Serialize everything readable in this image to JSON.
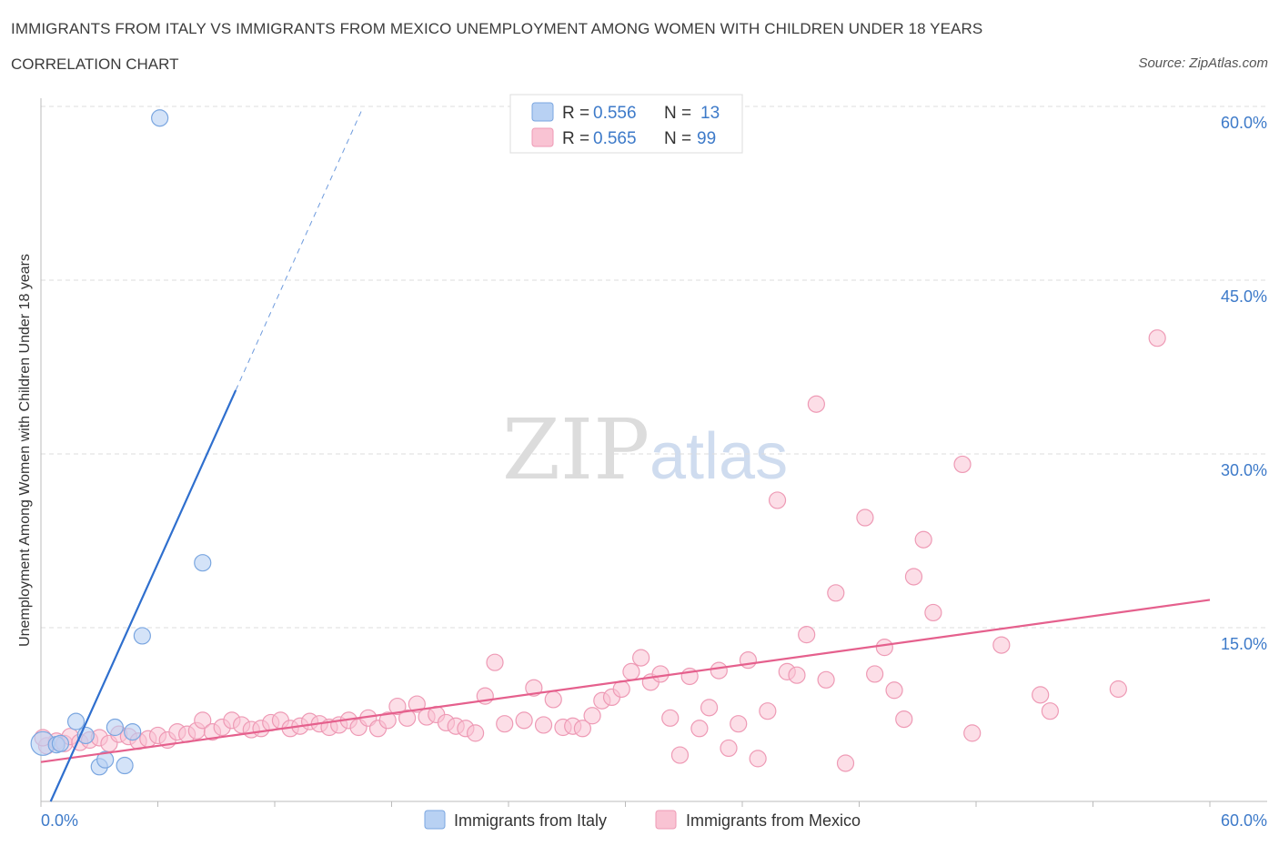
{
  "title": "IMMIGRANTS FROM ITALY VS IMMIGRANTS FROM MEXICO UNEMPLOYMENT AMONG WOMEN WITH CHILDREN UNDER 18 YEARS",
  "subtitle": "CORRELATION CHART",
  "source": "Source: ZipAtlas.com",
  "watermark": {
    "zip": "ZIP",
    "atlas": "atlas"
  },
  "colors": {
    "italy_fill": "#b8d1f3",
    "italy_stroke": "#7aa6e0",
    "italy_line": "#2f6fce",
    "mexico_fill": "#f9c3d3",
    "mexico_stroke": "#ee9ab5",
    "mexico_line": "#e5608d",
    "axis_label": "#3d7ac9",
    "grid": "#dddddd"
  },
  "legend": {
    "items": [
      {
        "r_label": "R = ",
        "r_value": "0.556",
        "n_label": "N = ",
        "n_value": "13"
      },
      {
        "r_label": "R = ",
        "r_value": "0.565",
        "n_label": "N = ",
        "n_value": "99"
      }
    ]
  },
  "chart_data": {
    "type": "scatter",
    "title": "IMMIGRANTS FROM ITALY VS IMMIGRANTS FROM MEXICO UNEMPLOYMENT AMONG WOMEN WITH CHILDREN UNDER 18 YEARS",
    "xlabel": "",
    "ylabel": "Unemployment Among Women with Children Under 18 years",
    "xlim": [
      0,
      60
    ],
    "ylim": [
      0,
      60
    ],
    "x_tick_labels": [
      "0.0%",
      "60.0%"
    ],
    "y_ticks": [
      15,
      30,
      45,
      60
    ],
    "y_tick_labels": [
      "15.0%",
      "30.0%",
      "45.0%",
      "60.0%"
    ],
    "grid": true,
    "series": [
      {
        "name": "Immigrants from Italy",
        "R": 0.556,
        "N": 13,
        "trend": {
          "x0": 0.5,
          "y0": 0.0,
          "x1": 10.0,
          "y1": 35.5,
          "dash_x1": 16.5,
          "dash_y1": 59.8
        },
        "points": [
          [
            0.1,
            5.0
          ],
          [
            0.8,
            4.9
          ],
          [
            1.0,
            5.0
          ],
          [
            1.8,
            6.9
          ],
          [
            2.3,
            5.7
          ],
          [
            3.0,
            3.0
          ],
          [
            3.3,
            3.6
          ],
          [
            3.8,
            6.4
          ],
          [
            4.3,
            3.1
          ],
          [
            4.7,
            6.0
          ],
          [
            5.2,
            14.3
          ],
          [
            6.1,
            59.0
          ],
          [
            8.3,
            20.6
          ]
        ]
      },
      {
        "name": "Immigrants from Mexico",
        "R": 0.565,
        "N": 99,
        "trend": {
          "x0": 0.0,
          "y0": 3.4,
          "x1": 60.0,
          "y1": 17.4
        },
        "points": [
          [
            0.3,
            4.8
          ],
          [
            0.8,
            5.2
          ],
          [
            1.2,
            5.0
          ],
          [
            1.5,
            5.6
          ],
          [
            2.0,
            5.1
          ],
          [
            2.5,
            5.3
          ],
          [
            3.0,
            5.5
          ],
          [
            3.5,
            5.0
          ],
          [
            4.0,
            5.8
          ],
          [
            4.5,
            5.6
          ],
          [
            5.0,
            5.2
          ],
          [
            5.5,
            5.4
          ],
          [
            6.0,
            5.7
          ],
          [
            6.5,
            5.3
          ],
          [
            7.0,
            6.0
          ],
          [
            7.5,
            5.8
          ],
          [
            8.0,
            6.1
          ],
          [
            8.3,
            7.0
          ],
          [
            8.8,
            6.0
          ],
          [
            9.3,
            6.4
          ],
          [
            9.8,
            7.0
          ],
          [
            10.3,
            6.6
          ],
          [
            10.8,
            6.2
          ],
          [
            11.3,
            6.3
          ],
          [
            11.8,
            6.8
          ],
          [
            12.3,
            7.0
          ],
          [
            12.8,
            6.3
          ],
          [
            13.3,
            6.5
          ],
          [
            13.8,
            6.9
          ],
          [
            14.3,
            6.7
          ],
          [
            14.8,
            6.4
          ],
          [
            15.3,
            6.6
          ],
          [
            15.8,
            7.0
          ],
          [
            16.3,
            6.4
          ],
          [
            16.8,
            7.2
          ],
          [
            17.3,
            6.3
          ],
          [
            17.8,
            7.0
          ],
          [
            18.3,
            8.2
          ],
          [
            18.8,
            7.2
          ],
          [
            19.3,
            8.4
          ],
          [
            19.8,
            7.3
          ],
          [
            20.3,
            7.5
          ],
          [
            20.8,
            6.8
          ],
          [
            21.3,
            6.5
          ],
          [
            21.8,
            6.3
          ],
          [
            22.3,
            5.9
          ],
          [
            22.8,
            9.1
          ],
          [
            23.3,
            12.0
          ],
          [
            23.8,
            6.7
          ],
          [
            24.8,
            7.0
          ],
          [
            25.3,
            9.8
          ],
          [
            25.8,
            6.6
          ],
          [
            26.3,
            8.8
          ],
          [
            26.8,
            6.4
          ],
          [
            27.3,
            6.5
          ],
          [
            27.8,
            6.3
          ],
          [
            28.3,
            7.4
          ],
          [
            28.8,
            8.7
          ],
          [
            29.3,
            9.0
          ],
          [
            29.8,
            9.7
          ],
          [
            30.3,
            11.2
          ],
          [
            30.8,
            12.4
          ],
          [
            31.3,
            10.3
          ],
          [
            31.8,
            11.0
          ],
          [
            32.3,
            7.2
          ],
          [
            32.8,
            4.0
          ],
          [
            33.3,
            10.8
          ],
          [
            33.8,
            6.3
          ],
          [
            34.3,
            8.1
          ],
          [
            34.8,
            11.3
          ],
          [
            35.3,
            4.6
          ],
          [
            35.8,
            6.7
          ],
          [
            36.3,
            12.2
          ],
          [
            36.8,
            3.7
          ],
          [
            37.3,
            7.8
          ],
          [
            37.8,
            26.0
          ],
          [
            38.3,
            11.2
          ],
          [
            38.8,
            10.9
          ],
          [
            39.3,
            14.4
          ],
          [
            39.8,
            34.3
          ],
          [
            40.3,
            10.5
          ],
          [
            40.8,
            18.0
          ],
          [
            41.3,
            3.3
          ],
          [
            42.3,
            24.5
          ],
          [
            42.8,
            11.0
          ],
          [
            43.3,
            13.3
          ],
          [
            43.8,
            9.6
          ],
          [
            44.3,
            7.1
          ],
          [
            44.8,
            19.4
          ],
          [
            45.3,
            22.6
          ],
          [
            45.8,
            16.3
          ],
          [
            47.3,
            29.1
          ],
          [
            47.8,
            5.9
          ],
          [
            49.3,
            13.5
          ],
          [
            51.3,
            9.2
          ],
          [
            51.8,
            7.8
          ],
          [
            55.3,
            9.7
          ],
          [
            57.3,
            40.0
          ],
          [
            0.1,
            5.5
          ]
        ]
      }
    ]
  },
  "bottom_legend": [
    "Immigrants from Italy",
    "Immigrants from Mexico"
  ]
}
